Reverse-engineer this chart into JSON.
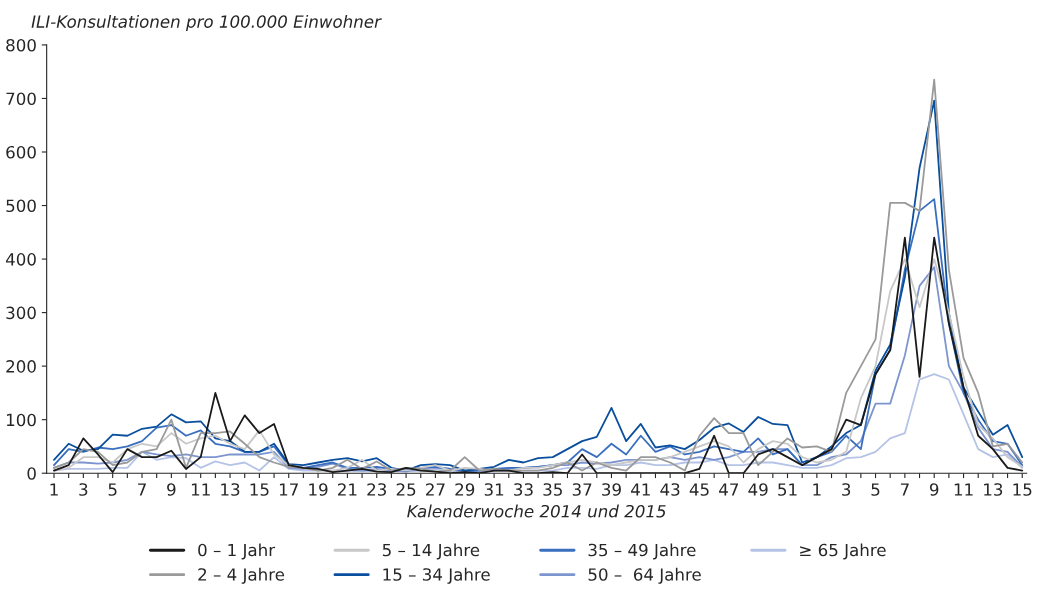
{
  "chart_data": {
    "type": "line",
    "ylabel": "ILI-Konsultationen pro 100.000 Einwohner",
    "xlabel": "Kalenderwoche 2014 und 2015",
    "categories": [
      "1",
      null,
      "3",
      null,
      "5",
      null,
      "7",
      null,
      "9",
      null,
      "11",
      null,
      "13",
      null,
      "15",
      null,
      "17",
      null,
      "19",
      null,
      "21",
      null,
      "23",
      null,
      "25",
      null,
      "27",
      null,
      "29",
      null,
      "31",
      null,
      "33",
      null,
      "35",
      null,
      "37",
      null,
      "39",
      null,
      "41",
      null,
      "43",
      null,
      "45",
      null,
      "47",
      null,
      "49",
      null,
      "51",
      null,
      "1",
      null,
      "3",
      null,
      "5",
      null,
      "7",
      null,
      "9",
      null,
      "11",
      null,
      "13",
      null,
      "15"
    ],
    "ylim": [
      0,
      800
    ],
    "yticks": [
      0,
      100,
      200,
      300,
      400,
      500,
      600,
      700,
      800
    ],
    "grid": false,
    "legend": "bottom",
    "marker": "none",
    "line_style": "solid",
    "series": [
      {
        "name": "0 – 1 Jahr",
        "color": "#1a1a1a",
        "values": [
          5,
          15,
          65,
          35,
          2,
          45,
          30,
          30,
          42,
          8,
          30,
          150,
          60,
          108,
          75,
          92,
          15,
          10,
          8,
          2,
          5,
          8,
          3,
          2,
          10,
          5,
          3,
          0,
          2,
          0,
          5,
          5,
          0,
          0,
          2,
          0,
          35,
          0,
          0,
          0,
          0,
          0,
          0,
          0,
          8,
          70,
          0,
          0,
          35,
          45,
          30,
          15,
          30,
          45,
          100,
          90,
          185,
          230,
          440,
          180,
          440,
          280,
          160,
          70,
          45,
          10,
          5
        ]
      },
      {
        "name": "2 – 4 Jahre",
        "color": "#9a9a9a",
        "values": [
          10,
          20,
          45,
          40,
          15,
          20,
          40,
          45,
          100,
          10,
          75,
          75,
          78,
          55,
          30,
          20,
          12,
          10,
          5,
          10,
          25,
          8,
          22,
          5,
          10,
          8,
          3,
          5,
          30,
          5,
          8,
          5,
          5,
          5,
          10,
          20,
          5,
          20,
          10,
          5,
          30,
          30,
          20,
          5,
          70,
          103,
          75,
          75,
          15,
          40,
          65,
          48,
          50,
          40,
          150,
          200,
          250,
          505,
          505,
          490,
          735,
          380,
          215,
          150,
          50,
          55,
          20
        ]
      },
      {
        "name": "5 – 14 Jahre",
        "color": "#c8c8c8",
        "values": [
          5,
          10,
          30,
          30,
          20,
          45,
          55,
          50,
          75,
          55,
          65,
          70,
          55,
          45,
          80,
          35,
          15,
          10,
          5,
          5,
          10,
          25,
          5,
          8,
          5,
          10,
          15,
          5,
          10,
          8,
          5,
          5,
          10,
          10,
          15,
          20,
          25,
          20,
          15,
          20,
          25,
          25,
          30,
          40,
          50,
          60,
          50,
          20,
          45,
          60,
          55,
          30,
          20,
          25,
          40,
          140,
          200,
          340,
          400,
          310,
          400,
          300,
          180,
          90,
          65,
          30,
          12
        ]
      },
      {
        "name": "15 – 34 Jahre",
        "color": "#0a4f9e",
        "values": [
          25,
          55,
          42,
          45,
          72,
          70,
          83,
          87,
          110,
          95,
          97,
          65,
          60,
          40,
          40,
          55,
          17,
          15,
          20,
          25,
          28,
          22,
          28,
          10,
          5,
          15,
          17,
          15,
          5,
          8,
          12,
          25,
          20,
          28,
          30,
          45,
          60,
          68,
          122,
          60,
          92,
          48,
          52,
          45,
          62,
          85,
          93,
          77,
          105,
          92,
          90,
          20,
          30,
          50,
          75,
          90,
          192,
          240,
          366,
          570,
          696,
          300,
          160,
          115,
          72,
          90,
          30
        ]
      },
      {
        "name": "35 – 49 Jahre",
        "color": "#3a6fc0",
        "values": [
          15,
          45,
          40,
          48,
          45,
          50,
          60,
          85,
          90,
          70,
          80,
          55,
          50,
          40,
          40,
          50,
          15,
          10,
          15,
          20,
          10,
          10,
          12,
          8,
          5,
          10,
          12,
          8,
          5,
          5,
          8,
          10,
          10,
          12,
          15,
          20,
          45,
          30,
          55,
          35,
          70,
          40,
          50,
          35,
          40,
          50,
          45,
          40,
          65,
          35,
          45,
          15,
          30,
          40,
          70,
          45,
          185,
          230,
          380,
          490,
          512,
          280,
          150,
          100,
          60,
          55,
          15
        ]
      },
      {
        "name": "50 –  64 Jahre",
        "color": "#7d95cf",
        "values": [
          10,
          20,
          20,
          18,
          20,
          25,
          40,
          35,
          32,
          35,
          30,
          30,
          35,
          35,
          35,
          40,
          10,
          8,
          12,
          18,
          8,
          5,
          8,
          5,
          3,
          10,
          10,
          8,
          3,
          5,
          5,
          8,
          10,
          12,
          15,
          15,
          20,
          18,
          20,
          25,
          25,
          25,
          30,
          25,
          30,
          25,
          30,
          40,
          40,
          45,
          45,
          15,
          15,
          30,
          35,
          60,
          130,
          130,
          220,
          350,
          385,
          200,
          150,
          85,
          45,
          40,
          12
        ]
      },
      {
        "name": "≥ 65 Jahre",
        "color": "#b5c3e6",
        "values": [
          5,
          8,
          8,
          8,
          10,
          10,
          40,
          25,
          30,
          28,
          10,
          22,
          15,
          20,
          5,
          30,
          8,
          5,
          5,
          5,
          5,
          3,
          5,
          5,
          3,
          5,
          8,
          3,
          5,
          3,
          3,
          5,
          5,
          5,
          5,
          10,
          10,
          8,
          15,
          15,
          20,
          15,
          15,
          20,
          20,
          25,
          15,
          15,
          20,
          20,
          15,
          10,
          10,
          15,
          28,
          30,
          40,
          65,
          75,
          175,
          185,
          175,
          110,
          45,
          30,
          35,
          10
        ]
      }
    ]
  }
}
